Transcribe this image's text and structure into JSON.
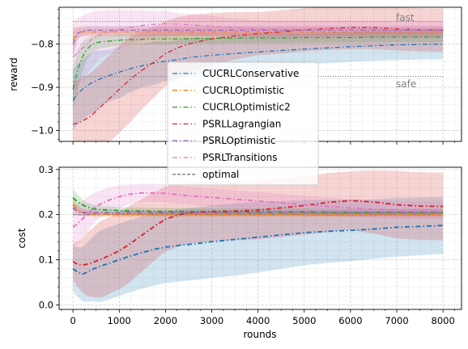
{
  "chart_data": {
    "type": "line",
    "shared_xlabel": "rounds",
    "xlim": [
      -300,
      8400
    ],
    "xticks": [
      0,
      1000,
      2000,
      3000,
      4000,
      5000,
      6000,
      7000,
      8000
    ],
    "x": [
      0,
      100,
      200,
      300,
      400,
      500,
      600,
      800,
      1000,
      1200,
      1500,
      1800,
      2000,
      2300,
      2600,
      3000,
      3500,
      4000,
      4500,
      5000,
      5500,
      6000,
      6500,
      7000,
      7500,
      8000
    ],
    "colors": {
      "CUCRLConservative": "#1f77b4",
      "CUCRLOptimistic": "#ff7f0e",
      "CUCRLOptimistic2": "#2ca02c",
      "PSRLLagrangian": "#d62728",
      "PSRLOptimistic": "#9467bd",
      "PSRLTransitions": "#e377c2",
      "optimal": "#7f7f7f"
    },
    "legend": {
      "placement": "center-left, overlapping both panels",
      "entries": [
        "CUCRLConservative",
        "CUCRLOptimistic",
        "CUCRLOptimistic2",
        "PSRLLagrangian",
        "PSRLOptimistic",
        "PSRLTransitions",
        "optimal"
      ]
    },
    "panels": [
      {
        "ylabel": "reward",
        "ylim": [
          -1.025,
          -0.715
        ],
        "yticks": [
          -1.0,
          -0.9,
          -0.8
        ],
        "ytick_labels": [
          "−1.0",
          "−0.9",
          "−0.8"
        ],
        "grid": true,
        "reference_lines": [
          {
            "label": "fast",
            "y": -0.748
          },
          {
            "label": "safe",
            "y": -0.875
          }
        ],
        "series": [
          {
            "name": "CUCRLConservative",
            "values": [
              -0.93,
              -0.915,
              -0.905,
              -0.897,
              -0.89,
              -0.885,
              -0.88,
              -0.872,
              -0.865,
              -0.858,
              -0.85,
              -0.843,
              -0.84,
              -0.835,
              -0.83,
              -0.826,
              -0.822,
              -0.818,
              -0.815,
              -0.812,
              -0.809,
              -0.806,
              -0.804,
              -0.802,
              -0.801,
              -0.8
            ],
            "band_width": [
              0.07,
              0.07,
              0.07,
              0.07,
              0.07,
              0.07,
              0.065,
              0.06,
              0.06,
              0.055,
              0.05,
              0.05,
              0.045,
              0.045,
              0.045,
              0.04,
              0.04,
              0.04,
              0.04,
              0.035,
              0.035,
              0.035,
              0.035,
              0.035,
              0.035,
              0.035
            ]
          },
          {
            "name": "CUCRLOptimistic",
            "values": [
              -0.79,
              -0.775,
              -0.772,
              -0.772,
              -0.772,
              -0.772,
              -0.772,
              -0.772,
              -0.772,
              -0.772,
              -0.772,
              -0.772,
              -0.772,
              -0.772,
              -0.772,
              -0.772,
              -0.772,
              -0.772,
              -0.772,
              -0.772,
              -0.772,
              -0.772,
              -0.772,
              -0.772,
              -0.772,
              -0.772
            ],
            "band_width": [
              0.03,
              0.012,
              0.01,
              0.01,
              0.01,
              0.01,
              0.01,
              0.01,
              0.01,
              0.01,
              0.01,
              0.01,
              0.01,
              0.01,
              0.01,
              0.01,
              0.01,
              0.01,
              0.01,
              0.01,
              0.01,
              0.01,
              0.01,
              0.01,
              0.01,
              0.01
            ]
          },
          {
            "name": "CUCRLOptimistic2",
            "values": [
              -0.905,
              -0.86,
              -0.83,
              -0.812,
              -0.802,
              -0.797,
              -0.795,
              -0.793,
              -0.791,
              -0.79,
              -0.789,
              -0.788,
              -0.788,
              -0.788,
              -0.787,
              -0.787,
              -0.786,
              -0.786,
              -0.786,
              -0.785,
              -0.785,
              -0.785,
              -0.784,
              -0.784,
              -0.784,
              -0.784
            ],
            "band_width": [
              0.05,
              0.045,
              0.035,
              0.025,
              0.02,
              0.016,
              0.015,
              0.014,
              0.013,
              0.013,
              0.012,
              0.012,
              0.012,
              0.012,
              0.012,
              0.012,
              0.012,
              0.012,
              0.012,
              0.012,
              0.012,
              0.012,
              0.012,
              0.012,
              0.012,
              0.012
            ]
          },
          {
            "name": "PSRLLagrangian",
            "values": [
              -0.985,
              -0.983,
              -0.978,
              -0.972,
              -0.965,
              -0.955,
              -0.945,
              -0.925,
              -0.905,
              -0.885,
              -0.86,
              -0.838,
              -0.822,
              -0.807,
              -0.797,
              -0.788,
              -0.781,
              -0.776,
              -0.772,
              -0.767,
              -0.764,
              -0.762,
              -0.762,
              -0.765,
              -0.767,
              -0.768
            ],
            "band_width": [
              0.1,
              0.1,
              0.1,
              0.1,
              0.1,
              0.1,
              0.1,
              0.1,
              0.1,
              0.1,
              0.09,
              0.08,
              0.075,
              0.07,
              0.065,
              0.06,
              0.055,
              0.05,
              0.05,
              0.05,
              0.05,
              0.05,
              0.05,
              0.05,
              0.05,
              0.05
            ]
          },
          {
            "name": "PSRLOptimistic",
            "values": [
              -0.8,
              -0.775,
              -0.77,
              -0.768,
              -0.768,
              -0.768,
              -0.768,
              -0.768,
              -0.768,
              -0.768,
              -0.768,
              -0.768,
              -0.768,
              -0.768,
              -0.768,
              -0.768,
              -0.768,
              -0.768,
              -0.768,
              -0.768,
              -0.768,
              -0.768,
              -0.768,
              -0.768,
              -0.768,
              -0.768
            ],
            "band_width": [
              0.03,
              0.015,
              0.01,
              0.01,
              0.01,
              0.01,
              0.01,
              0.01,
              0.01,
              0.01,
              0.01,
              0.01,
              0.01,
              0.01,
              0.01,
              0.01,
              0.01,
              0.01,
              0.01,
              0.01,
              0.01,
              0.01,
              0.01,
              0.01,
              0.01,
              0.01
            ]
          },
          {
            "name": "PSRLTransitions",
            "values": [
              -0.83,
              -0.82,
              -0.81,
              -0.8,
              -0.79,
              -0.783,
              -0.778,
              -0.772,
              -0.767,
              -0.762,
              -0.757,
              -0.754,
              -0.753,
              -0.754,
              -0.756,
              -0.759,
              -0.762,
              -0.765,
              -0.766,
              -0.766,
              -0.766,
              -0.766,
              -0.766,
              -0.766,
              -0.766,
              -0.766
            ],
            "band_width": [
              0.08,
              0.08,
              0.075,
              0.07,
              0.065,
              0.06,
              0.055,
              0.05,
              0.045,
              0.04,
              0.035,
              0.03,
              0.03,
              0.025,
              0.025,
              0.025,
              0.02,
              0.02,
              0.02,
              0.02,
              0.02,
              0.02,
              0.02,
              0.02,
              0.02,
              0.02
            ]
          }
        ]
      },
      {
        "ylabel": "cost",
        "ylim": [
          -0.01,
          0.305
        ],
        "yticks": [
          0.0,
          0.1,
          0.2,
          0.3
        ],
        "ytick_labels": [
          "0.0",
          "0.1",
          "0.2",
          "0.3"
        ],
        "grid": true,
        "reference_lines": [
          {
            "label": "optimal",
            "y": 0.2
          }
        ],
        "series": [
          {
            "name": "CUCRLConservative",
            "values": [
              0.08,
              0.073,
              0.068,
              0.072,
              0.078,
              0.082,
              0.086,
              0.093,
              0.1,
              0.107,
              0.116,
              0.124,
              0.128,
              0.132,
              0.135,
              0.14,
              0.145,
              0.15,
              0.155,
              0.16,
              0.163,
              0.165,
              0.168,
              0.172,
              0.174,
              0.176
            ],
            "band_width": [
              0.05,
              0.055,
              0.06,
              0.065,
              0.07,
              0.075,
              0.08,
              0.08,
              0.08,
              0.08,
              0.08,
              0.08,
              0.08,
              0.08,
              0.08,
              0.08,
              0.08,
              0.078,
              0.075,
              0.072,
              0.07,
              0.068,
              0.066,
              0.065,
              0.064,
              0.063
            ]
          },
          {
            "name": "CUCRLOptimistic",
            "values": [
              0.222,
              0.21,
              0.205,
              0.203,
              0.202,
              0.201,
              0.201,
              0.201,
              0.201,
              0.201,
              0.201,
              0.201,
              0.201,
              0.201,
              0.201,
              0.201,
              0.201,
              0.201,
              0.201,
              0.201,
              0.201,
              0.201,
              0.201,
              0.201,
              0.201,
              0.201
            ],
            "band_width": [
              0.015,
              0.01,
              0.008,
              0.007,
              0.006,
              0.006,
              0.006,
              0.006,
              0.006,
              0.006,
              0.006,
              0.006,
              0.006,
              0.006,
              0.006,
              0.006,
              0.006,
              0.006,
              0.006,
              0.006,
              0.006,
              0.006,
              0.006,
              0.006,
              0.006,
              0.006
            ]
          },
          {
            "name": "CUCRLOptimistic2",
            "values": [
              0.237,
              0.228,
              0.222,
              0.217,
              0.214,
              0.212,
              0.211,
              0.21,
              0.209,
              0.208,
              0.208,
              0.207,
              0.207,
              0.207,
              0.207,
              0.206,
              0.206,
              0.206,
              0.206,
              0.206,
              0.205,
              0.205,
              0.205,
              0.205,
              0.205,
              0.205
            ],
            "band_width": [
              0.02,
              0.016,
              0.012,
              0.01,
              0.009,
              0.008,
              0.008,
              0.008,
              0.008,
              0.008,
              0.008,
              0.008,
              0.008,
              0.008,
              0.008,
              0.008,
              0.008,
              0.008,
              0.008,
              0.008,
              0.008,
              0.008,
              0.008,
              0.008,
              0.008,
              0.008
            ]
          },
          {
            "name": "PSRLLagrangian",
            "values": [
              0.096,
              0.09,
              0.088,
              0.09,
              0.093,
              0.097,
              0.101,
              0.11,
              0.12,
              0.133,
              0.155,
              0.177,
              0.19,
              0.2,
              0.205,
              0.207,
              0.208,
              0.21,
              0.215,
              0.22,
              0.227,
              0.231,
              0.228,
              0.222,
              0.219,
              0.218
            ],
            "band_width": [
              0.04,
              0.05,
              0.06,
              0.07,
              0.075,
              0.08,
              0.085,
              0.085,
              0.085,
              0.085,
              0.08,
              0.075,
              0.072,
              0.07,
              0.068,
              0.066,
              0.065,
              0.065,
              0.065,
              0.065,
              0.065,
              0.065,
              0.07,
              0.075,
              0.075,
              0.075
            ]
          },
          {
            "name": "PSRLOptimistic",
            "values": [
              0.215,
              0.208,
              0.205,
              0.204,
              0.204,
              0.204,
              0.204,
              0.204,
              0.204,
              0.204,
              0.204,
              0.204,
              0.204,
              0.204,
              0.204,
              0.204,
              0.204,
              0.204,
              0.204,
              0.204,
              0.204,
              0.204,
              0.204,
              0.204,
              0.204,
              0.204
            ],
            "band_width": [
              0.015,
              0.01,
              0.008,
              0.007,
              0.006,
              0.006,
              0.006,
              0.006,
              0.006,
              0.006,
              0.006,
              0.006,
              0.006,
              0.006,
              0.006,
              0.006,
              0.006,
              0.006,
              0.006,
              0.006,
              0.006,
              0.006,
              0.006,
              0.006,
              0.006,
              0.006
            ]
          },
          {
            "name": "PSRLTransitions",
            "values": [
              0.172,
              0.18,
              0.19,
              0.2,
              0.21,
              0.218,
              0.224,
              0.233,
              0.24,
              0.245,
              0.248,
              0.248,
              0.247,
              0.244,
              0.241,
              0.238,
              0.234,
              0.23,
              0.226,
              0.222,
              0.218,
              0.215,
              0.212,
              0.21,
              0.21,
              0.21
            ],
            "band_width": [
              0.045,
              0.045,
              0.04,
              0.038,
              0.035,
              0.032,
              0.03,
              0.028,
              0.025,
              0.022,
              0.02,
              0.02,
              0.02,
              0.02,
              0.02,
              0.02,
              0.02,
              0.02,
              0.02,
              0.02,
              0.02,
              0.02,
              0.02,
              0.02,
              0.02,
              0.02
            ]
          }
        ]
      }
    ]
  }
}
